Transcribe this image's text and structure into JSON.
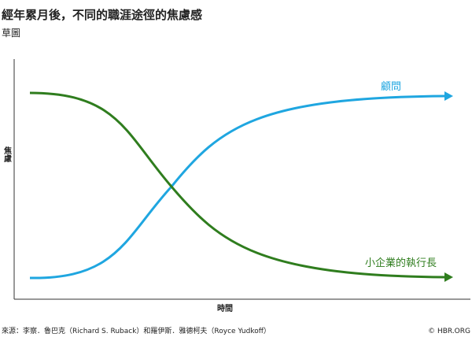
{
  "chart_data": {
    "type": "line",
    "title": "經年累月後，不同的職涯途徑的焦慮感",
    "subtitle": "草圖",
    "y_label": "焦慮",
    "x_label": "時間",
    "series": [
      {
        "name": "顧問",
        "color": "#1fa6e0"
      },
      {
        "name": "小企業的執行長",
        "color": "#2f7d1e"
      }
    ],
    "source": "來源：李察．魯巴克（Richard S. Ruback）和羅伊斯．雅德柯夫（Royce Yudkoff）",
    "credit": "© HBR.ORG"
  }
}
